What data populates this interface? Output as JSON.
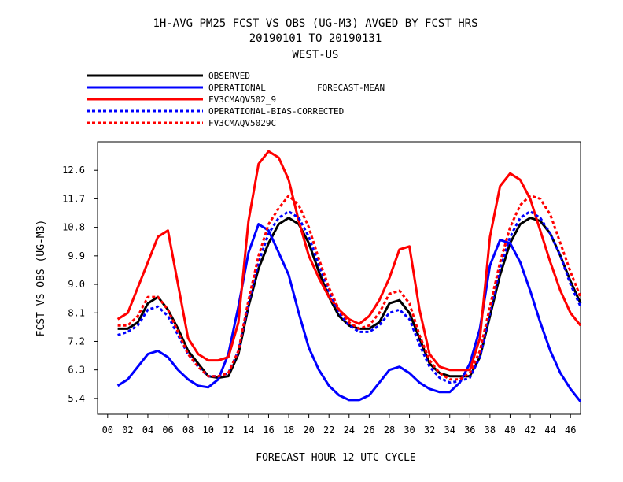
{
  "chart_data": {
    "type": "line",
    "title": "1H-AVG PM25 FCST VS OBS (UG-M3)  AVGED BY FCST HRS",
    "subtitle": "20190101 TO 20190131",
    "region": "WEST-US",
    "legend_extra": "FORECAST-MEAN",
    "xlabel": "FORECAST HOUR  12 UTC CYCLE",
    "ylabel": "FCST VS OBS (UG-M3)",
    "xlim": [
      -1,
      47
    ],
    "ylim": [
      4.9,
      13.5
    ],
    "x_ticks": [
      "00",
      "02",
      "04",
      "06",
      "08",
      "10",
      "12",
      "14",
      "16",
      "18",
      "20",
      "22",
      "24",
      "26",
      "28",
      "30",
      "32",
      "34",
      "36",
      "38",
      "40",
      "42",
      "44",
      "46"
    ],
    "y_ticks": [
      "5.4",
      "6.3",
      "7.2",
      "8.1",
      "9.0",
      "9.9",
      "10.8",
      "11.7",
      "12.6"
    ],
    "legend_placement": "top-left",
    "grid": false,
    "series": [
      {
        "name": "OBSERVED",
        "color": "#000000",
        "dash": "solid",
        "x": [
          1,
          2,
          3,
          4,
          5,
          6,
          7,
          8,
          9,
          10,
          11,
          12,
          13,
          14,
          15,
          16,
          17,
          18,
          19,
          20,
          21,
          22,
          23,
          24,
          25,
          26,
          27,
          28,
          29,
          30,
          31,
          32,
          33,
          34,
          35,
          36,
          37,
          38,
          39,
          40,
          41,
          42,
          43,
          44,
          45,
          46,
          47
        ],
        "values": [
          7.6,
          7.6,
          7.8,
          8.4,
          8.6,
          8.2,
          7.6,
          6.9,
          6.5,
          6.1,
          6.05,
          6.1,
          6.8,
          8.3,
          9.5,
          10.3,
          10.9,
          11.1,
          10.9,
          10.3,
          9.4,
          8.6,
          8.0,
          7.7,
          7.6,
          7.6,
          7.8,
          8.4,
          8.5,
          8.1,
          7.3,
          6.5,
          6.2,
          6.1,
          6.1,
          6.1,
          6.7,
          8.0,
          9.3,
          10.3,
          10.9,
          11.1,
          11.0,
          10.6,
          9.9,
          9.1,
          8.4
        ]
      },
      {
        "name": "OPERATIONAL",
        "color": "#0000ff",
        "dash": "solid",
        "x": [
          1,
          2,
          3,
          4,
          5,
          6,
          7,
          8,
          9,
          10,
          11,
          12,
          13,
          14,
          15,
          16,
          17,
          18,
          19,
          20,
          21,
          22,
          23,
          24,
          25,
          26,
          27,
          28,
          29,
          30,
          31,
          32,
          33,
          34,
          35,
          36,
          37,
          38,
          39,
          40,
          41,
          42,
          43,
          44,
          45,
          46,
          47
        ],
        "values": [
          5.8,
          6.0,
          6.4,
          6.8,
          6.9,
          6.7,
          6.3,
          6.0,
          5.8,
          5.75,
          6.0,
          6.8,
          8.3,
          10.0,
          10.9,
          10.7,
          10.0,
          9.3,
          8.1,
          7.0,
          6.3,
          5.8,
          5.5,
          5.35,
          5.35,
          5.5,
          5.9,
          6.3,
          6.4,
          6.2,
          5.9,
          5.7,
          5.6,
          5.6,
          5.9,
          6.5,
          7.6,
          9.6,
          10.4,
          10.3,
          9.7,
          8.8,
          7.8,
          6.9,
          6.2,
          5.7,
          5.3
        ]
      },
      {
        "name": "FV3CMAQV502_9",
        "color": "#ff0000",
        "dash": "solid",
        "x": [
          1,
          2,
          3,
          4,
          5,
          6,
          7,
          8,
          9,
          10,
          11,
          12,
          13,
          14,
          15,
          16,
          17,
          18,
          19,
          20,
          21,
          22,
          23,
          24,
          25,
          26,
          27,
          28,
          29,
          30,
          31,
          32,
          33,
          34,
          35,
          36,
          37,
          38,
          39,
          40,
          41,
          42,
          43,
          44,
          45,
          46,
          47
        ],
        "values": [
          7.9,
          8.1,
          8.9,
          9.7,
          10.5,
          10.7,
          9.0,
          7.3,
          6.8,
          6.6,
          6.6,
          6.7,
          7.8,
          11.0,
          12.8,
          13.2,
          13.0,
          12.3,
          11.0,
          9.9,
          9.2,
          8.6,
          8.2,
          7.9,
          7.75,
          8.0,
          8.5,
          9.2,
          10.1,
          10.2,
          8.2,
          6.8,
          6.4,
          6.3,
          6.3,
          6.3,
          7.3,
          10.5,
          12.1,
          12.5,
          12.3,
          11.7,
          10.7,
          9.7,
          8.8,
          8.1,
          7.7
        ]
      },
      {
        "name": "OPERATIONAL-BIAS-CORRECTED",
        "color": "#0000ff",
        "dash": "dashed",
        "x": [
          1,
          2,
          3,
          4,
          5,
          6,
          7,
          8,
          9,
          10,
          11,
          12,
          13,
          14,
          15,
          16,
          17,
          18,
          19,
          20,
          21,
          22,
          23,
          24,
          25,
          26,
          27,
          28,
          29,
          30,
          31,
          32,
          33,
          34,
          35,
          36,
          37,
          38,
          39,
          40,
          41,
          42,
          43,
          44,
          45,
          46,
          47
        ],
        "values": [
          7.4,
          7.5,
          7.7,
          8.2,
          8.3,
          8.0,
          7.4,
          6.8,
          6.4,
          6.1,
          6.1,
          6.2,
          6.9,
          8.4,
          9.7,
          10.6,
          11.1,
          11.3,
          11.1,
          10.5,
          9.6,
          8.8,
          8.1,
          7.7,
          7.5,
          7.5,
          7.7,
          8.1,
          8.2,
          7.9,
          7.1,
          6.4,
          6.05,
          5.9,
          5.95,
          6.05,
          6.7,
          8.1,
          9.5,
          10.5,
          11.1,
          11.3,
          11.1,
          10.6,
          9.9,
          9.0,
          8.3
        ]
      },
      {
        "name": "FV3CMAQV5029C",
        "color": "#ff0000",
        "dash": "dashed",
        "x": [
          1,
          2,
          3,
          4,
          5,
          6,
          7,
          8,
          9,
          10,
          11,
          12,
          13,
          14,
          15,
          16,
          17,
          18,
          19,
          20,
          21,
          22,
          23,
          24,
          25,
          26,
          27,
          28,
          29,
          30,
          31,
          32,
          33,
          34,
          35,
          36,
          37,
          38,
          39,
          40,
          41,
          42,
          43,
          44,
          45,
          46,
          47
        ],
        "values": [
          7.7,
          7.7,
          8.0,
          8.6,
          8.6,
          8.2,
          7.5,
          6.8,
          6.4,
          6.1,
          6.1,
          6.2,
          6.9,
          8.5,
          9.9,
          10.9,
          11.4,
          11.8,
          11.5,
          10.8,
          9.8,
          8.9,
          8.2,
          7.8,
          7.6,
          7.7,
          8.1,
          8.7,
          8.8,
          8.4,
          7.4,
          6.6,
          6.2,
          6.0,
          6.0,
          6.2,
          6.9,
          8.3,
          9.7,
          10.8,
          11.5,
          11.8,
          11.7,
          11.2,
          10.3,
          9.4,
          8.6
        ]
      }
    ]
  }
}
